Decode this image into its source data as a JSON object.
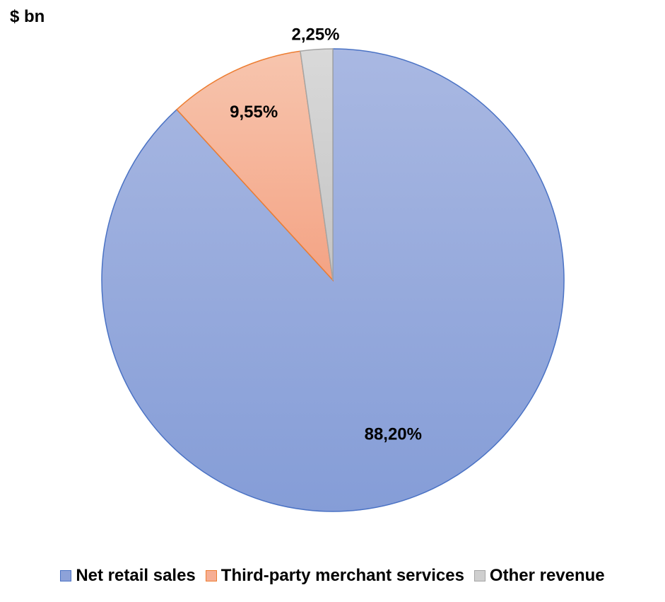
{
  "unit_label": "$ bn",
  "chart_data": {
    "type": "pie",
    "title": "",
    "categories": [
      "Net retail sales",
      "Third-party merchant services",
      "Other revenue"
    ],
    "values": [
      88.2,
      9.55,
      2.25
    ],
    "data_labels": [
      "88,20%",
      "9,55%",
      "2,25%"
    ],
    "colors": [
      "#8DA2D9",
      "#F6AE94",
      "#CFCFCF"
    ],
    "edge_colors": [
      "#4A72C4",
      "#ED7D31",
      "#A5A5A5"
    ],
    "legend_position": "bottom",
    "start_angle_deg": 0,
    "direction": "clockwise"
  }
}
